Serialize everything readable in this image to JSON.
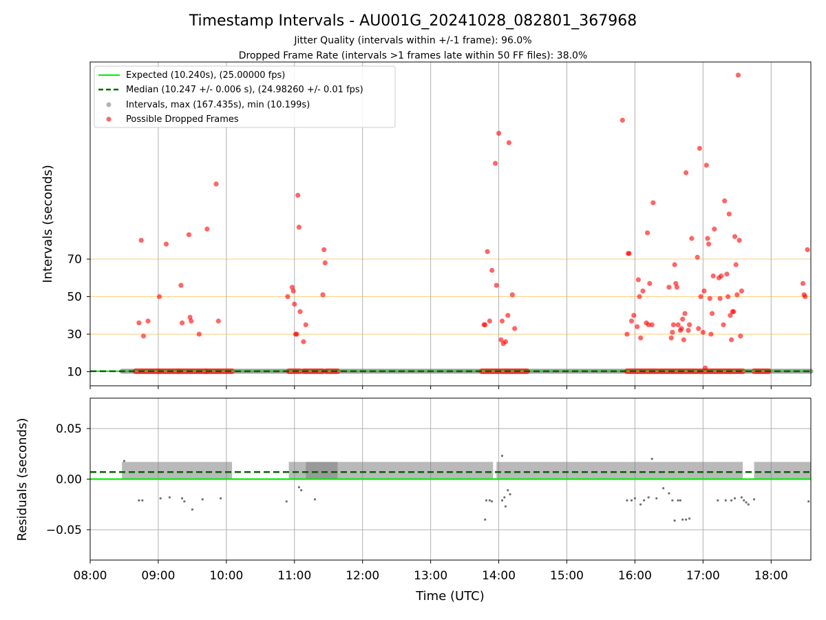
{
  "chart_data": [
    {
      "type": "scatter",
      "title": "Timestamp Intervals - AU001G_20241028_082801_367968",
      "subtitle_lines": [
        "Jitter Quality (intervals within +/-1 frame): 96.0%",
        "Dropped Frame Rate (intervals >1 frames late within 50 FF files): 38.0%"
      ],
      "xlabel": "",
      "ylabel": "Intervals (seconds)",
      "xlim": [
        "08:00",
        "18:35"
      ],
      "ylim": [
        2.5,
        175
      ],
      "y_ticks": [
        10,
        30,
        50,
        70
      ],
      "reference_lines": [
        30,
        50,
        70
      ],
      "grid": "vertical",
      "legend": {
        "placement": "top-left",
        "entries": [
          "Expected (10.240s), (25.00000 fps)",
          "Median (10.247 +/- 0.006 s), (24.98260 +/- 0.01 fps)",
          "Intervals, max (167.435s), min (10.199s)",
          "Possible Dropped Frames"
        ]
      },
      "expected_interval": 10.24,
      "median_interval": 10.247,
      "intervals_band": {
        "start": "08:28",
        "end": "18:35",
        "value": 10.24
      },
      "dropped_baseline_segments": [
        [
          "08:40",
          "09:00"
        ],
        [
          "09:00",
          "09:18"
        ],
        [
          "09:18",
          "09:42"
        ],
        [
          "09:42",
          "10:05"
        ],
        [
          "10:55",
          "11:05"
        ],
        [
          "11:08",
          "11:25"
        ],
        [
          "11:28",
          "11:38"
        ],
        [
          "13:45",
          "14:00"
        ],
        [
          "14:02",
          "14:25"
        ],
        [
          "15:53",
          "16:20"
        ],
        [
          "16:22",
          "16:55"
        ],
        [
          "16:57",
          "17:35"
        ],
        [
          "17:45",
          "17:58"
        ]
      ],
      "series": [
        {
          "name": "Possible Dropped Frames",
          "color": "#ff0000",
          "points": [
            [
              "08:43",
              36
            ],
            [
              "08:45",
              80
            ],
            [
              "08:47",
              29
            ],
            [
              "08:51",
              37
            ],
            [
              "09:01",
              50
            ],
            [
              "09:07",
              78
            ],
            [
              "09:20",
              56
            ],
            [
              "09:21",
              36
            ],
            [
              "09:27",
              83
            ],
            [
              "09:28",
              39
            ],
            [
              "09:29",
              37
            ],
            [
              "09:36",
              30
            ],
            [
              "09:43",
              86
            ],
            [
              "09:51",
              110
            ],
            [
              "09:53",
              37
            ],
            [
              "10:54",
              50
            ],
            [
              "10:58",
              55
            ],
            [
              "10:59",
              53
            ],
            [
              "11:00",
              46
            ],
            [
              "11:01",
              30
            ],
            [
              "11:02",
              30
            ],
            [
              "11:03",
              104
            ],
            [
              "11:04",
              87
            ],
            [
              "11:05",
              42
            ],
            [
              "11:08",
              26
            ],
            [
              "11:10",
              35
            ],
            [
              "11:25",
              51
            ],
            [
              "11:26",
              75
            ],
            [
              "11:27",
              68
            ],
            [
              "13:47",
              35
            ],
            [
              "13:48",
              35
            ],
            [
              "13:50",
              74
            ],
            [
              "13:52",
              37
            ],
            [
              "13:54",
              64
            ],
            [
              "13:57",
              121
            ],
            [
              "13:58",
              56
            ],
            [
              "14:00",
              137
            ],
            [
              "14:02",
              27
            ],
            [
              "14:03",
              37
            ],
            [
              "14:04",
              25
            ],
            [
              "14:06",
              26
            ],
            [
              "14:08",
              40
            ],
            [
              "14:09",
              132
            ],
            [
              "14:12",
              51
            ],
            [
              "14:14",
              33
            ],
            [
              "15:49",
              144
            ],
            [
              "15:53",
              30
            ],
            [
              "15:54",
              73
            ],
            [
              "15:55",
              73
            ],
            [
              "15:57",
              37
            ],
            [
              "15:59",
              40
            ],
            [
              "16:02",
              34
            ],
            [
              "16:03",
              59
            ],
            [
              "16:04",
              50
            ],
            [
              "16:05",
              28
            ],
            [
              "16:07",
              53
            ],
            [
              "16:10",
              36
            ],
            [
              "16:11",
              84
            ],
            [
              "16:12",
              35
            ],
            [
              "16:13",
              57
            ],
            [
              "16:15",
              35
            ],
            [
              "16:16",
              100
            ],
            [
              "16:30",
              55
            ],
            [
              "16:32",
              28
            ],
            [
              "16:33",
              31
            ],
            [
              "16:34",
              35
            ],
            [
              "16:35",
              67
            ],
            [
              "16:36",
              57
            ],
            [
              "16:37",
              55
            ],
            [
              "16:38",
              35
            ],
            [
              "16:40",
              32
            ],
            [
              "16:41",
              33
            ],
            [
              "16:42",
              38
            ],
            [
              "16:43",
              27
            ],
            [
              "16:44",
              41
            ],
            [
              "16:45",
              116
            ],
            [
              "16:47",
              32
            ],
            [
              "16:48",
              35
            ],
            [
              "16:50",
              81
            ],
            [
              "16:55",
              71
            ],
            [
              "16:56",
              33
            ],
            [
              "16:57",
              129
            ],
            [
              "16:58",
              50
            ],
            [
              "17:00",
              31
            ],
            [
              "17:01",
              53
            ],
            [
              "17:02",
              12
            ],
            [
              "17:03",
              120
            ],
            [
              "17:04",
              81
            ],
            [
              "17:05",
              78
            ],
            [
              "17:06",
              49
            ],
            [
              "17:07",
              30
            ],
            [
              "17:08",
              41
            ],
            [
              "17:09",
              61
            ],
            [
              "17:10",
              86
            ],
            [
              "17:14",
              60
            ],
            [
              "17:15",
              49
            ],
            [
              "17:16",
              61
            ],
            [
              "17:18",
              35
            ],
            [
              "17:19",
              101
            ],
            [
              "17:21",
              62
            ],
            [
              "17:22",
              50
            ],
            [
              "17:23",
              94
            ],
            [
              "17:24",
              40
            ],
            [
              "17:25",
              27
            ],
            [
              "17:26",
              42
            ],
            [
              "17:27",
              42
            ],
            [
              "17:28",
              82
            ],
            [
              "17:29",
              67
            ],
            [
              "17:30",
              51
            ],
            [
              "17:31",
              168
            ],
            [
              "17:32",
              80
            ],
            [
              "17:33",
              29
            ],
            [
              "17:34",
              53
            ],
            [
              "18:28",
              57
            ],
            [
              "18:29",
              51
            ],
            [
              "18:30",
              50
            ],
            [
              "18:32",
              75
            ]
          ]
        }
      ]
    },
    {
      "type": "scatter",
      "title": "",
      "xlabel": "Time (UTC)",
      "ylabel": "Residuals (seconds)",
      "xlim": [
        "08:00",
        "18:35"
      ],
      "ylim": [
        -0.08,
        0.08
      ],
      "x_ticks": [
        "08:00",
        "09:00",
        "10:00",
        "11:00",
        "12:00",
        "13:00",
        "14:00",
        "15:00",
        "16:00",
        "17:00",
        "18:00"
      ],
      "y_ticks": [
        0.05,
        0.0,
        -0.05
      ],
      "y_tick_labels": [
        "0.05",
        "0.00",
        "−0.05"
      ],
      "grid": "both",
      "expected_residual": 0.0,
      "median_residual": 0.007,
      "residual_band": {
        "ranges": [
          [
            "08:28",
            "10:05"
          ],
          [
            "10:55",
            "11:38"
          ],
          [
            "11:10",
            "13:55"
          ],
          [
            "13:58",
            "15:55"
          ],
          [
            "15:55",
            "16:55"
          ],
          [
            "16:55",
            "17:35"
          ],
          [
            "17:45",
            "18:35"
          ]
        ],
        "min": 0.0,
        "max": 0.017
      },
      "outliers": [
        [
          "08:30",
          0.018
        ],
        [
          "08:43",
          -0.021
        ],
        [
          "08:46",
          -0.021
        ],
        [
          "09:02",
          -0.019
        ],
        [
          "09:10",
          -0.018
        ],
        [
          "09:21",
          -0.019
        ],
        [
          "09:23",
          -0.022
        ],
        [
          "09:30",
          -0.03
        ],
        [
          "09:39",
          -0.02
        ],
        [
          "09:55",
          -0.019
        ],
        [
          "10:53",
          -0.022
        ],
        [
          "11:04",
          -0.008
        ],
        [
          "11:06",
          -0.011
        ],
        [
          "11:18",
          -0.02
        ],
        [
          "13:48",
          -0.04
        ],
        [
          "13:49",
          -0.021
        ],
        [
          "13:52",
          -0.021
        ],
        [
          "13:54",
          -0.022
        ],
        [
          "14:03",
          0.023
        ],
        [
          "14:03",
          -0.021
        ],
        [
          "14:05",
          -0.018
        ],
        [
          "14:06",
          -0.027
        ],
        [
          "14:08",
          -0.011
        ],
        [
          "14:10",
          -0.015
        ],
        [
          "15:53",
          -0.021
        ],
        [
          "15:57",
          -0.021
        ],
        [
          "16:00",
          -0.019
        ],
        [
          "16:05",
          -0.025
        ],
        [
          "16:08",
          -0.021
        ],
        [
          "16:12",
          -0.018
        ],
        [
          "16:15",
          0.02
        ],
        [
          "16:19",
          -0.019
        ],
        [
          "16:25",
          -0.009
        ],
        [
          "16:30",
          -0.014
        ],
        [
          "16:33",
          -0.021
        ],
        [
          "16:35",
          -0.041
        ],
        [
          "16:38",
          -0.021
        ],
        [
          "16:40",
          -0.021
        ],
        [
          "16:42",
          -0.04
        ],
        [
          "16:45",
          -0.04
        ],
        [
          "16:48",
          -0.039
        ],
        [
          "17:13",
          -0.021
        ],
        [
          "17:20",
          -0.021
        ],
        [
          "17:25",
          -0.021
        ],
        [
          "17:28",
          -0.019
        ],
        [
          "17:34",
          -0.018
        ],
        [
          "17:36",
          -0.021
        ],
        [
          "17:38",
          -0.023
        ],
        [
          "17:40",
          -0.025
        ],
        [
          "17:45",
          -0.02
        ],
        [
          "18:33",
          -0.022
        ]
      ]
    }
  ]
}
